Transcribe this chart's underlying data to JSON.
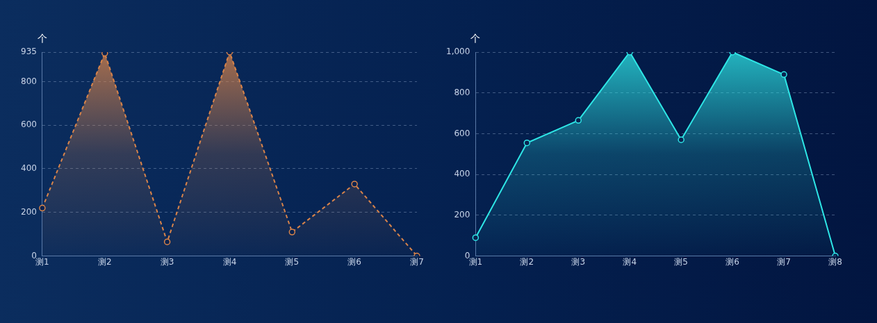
{
  "chart_data": [
    {
      "type": "area",
      "ylabel": "个",
      "categories": [
        "测1",
        "测2",
        "测3",
        "测4",
        "测5",
        "测6",
        "测7"
      ],
      "series": [
        {
          "color": "#d9844a",
          "values": [
            220,
            930,
            65,
            935,
            110,
            330,
            0
          ]
        }
      ],
      "ylim": [
        0,
        935
      ],
      "yticks": [
        0,
        200,
        400,
        600,
        800,
        935
      ],
      "grid": "y",
      "legend": false,
      "marker": "circle",
      "line_style": "dashed"
    },
    {
      "type": "area",
      "ylabel": "个",
      "categories": [
        "测1",
        "测2",
        "测3",
        "测4",
        "测5",
        "测6",
        "测7",
        "测8"
      ],
      "series": [
        {
          "color": "#2ee6e6",
          "values": [
            90,
            555,
            665,
            1000,
            570,
            1000,
            890,
            0
          ]
        }
      ],
      "ylim": [
        0,
        1000
      ],
      "yticks": [
        0,
        200,
        400,
        600,
        800,
        {
          "value": 1000,
          "label": "1,000"
        }
      ],
      "grid": "y",
      "legend": false,
      "marker": "circle",
      "line_style": "solid"
    }
  ]
}
